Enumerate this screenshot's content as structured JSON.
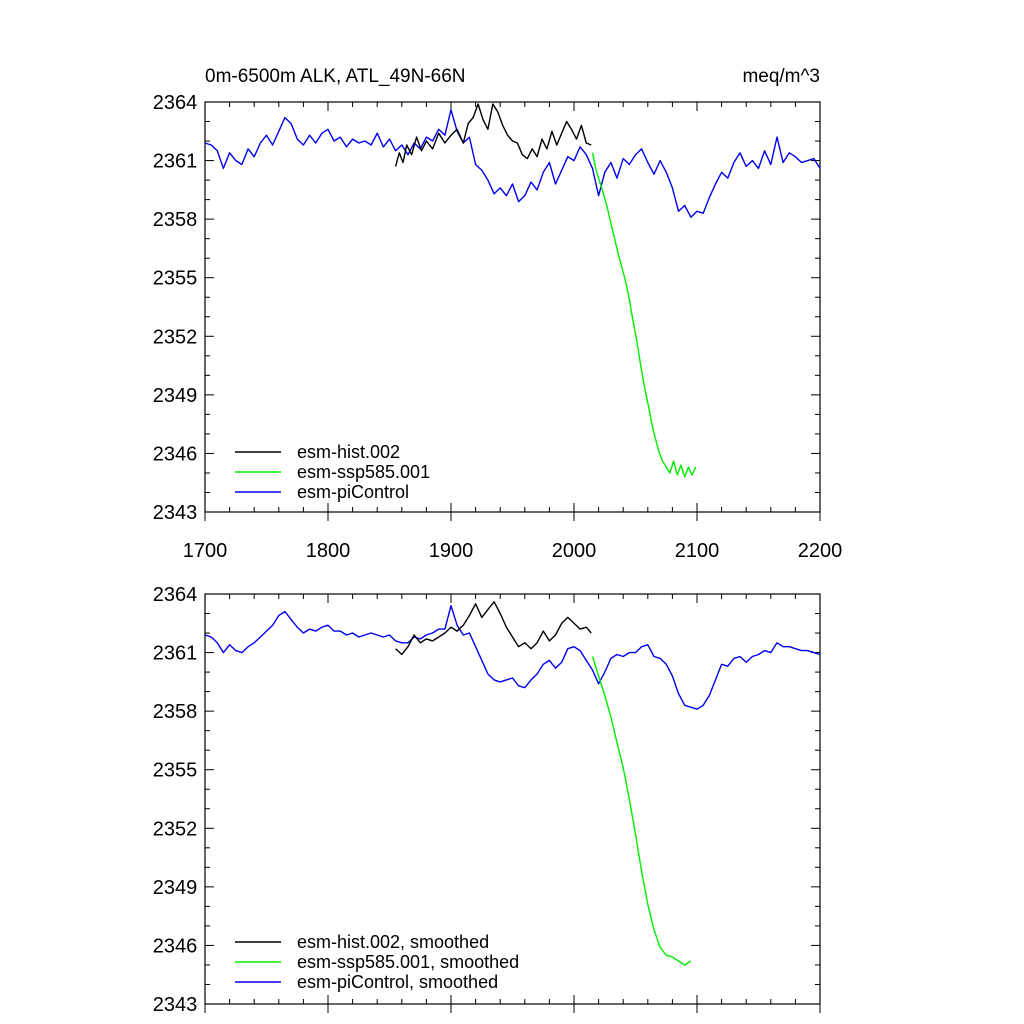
{
  "chart_data": [
    {
      "type": "line",
      "title": "0m-6500m ALK, ATL_49N-66N",
      "units": "meq/m^3",
      "xlim": [
        1700,
        2200
      ],
      "ylim": [
        2343,
        2364
      ],
      "x_ticks": [
        "1700",
        "1800",
        "1900",
        "2000",
        "2100",
        "2200"
      ],
      "y_ticks": [
        "2343",
        "2346",
        "2349",
        "2352",
        "2355",
        "2358",
        "2361",
        "2364"
      ],
      "legend_position": "bottom-left",
      "series": [
        {
          "name": "esm-hist.002",
          "color": "#000000",
          "x": [
            1855,
            1858,
            1861,
            1864,
            1868,
            1872,
            1876,
            1880,
            1885,
            1890,
            1895,
            1900,
            1905,
            1910,
            1914,
            1918,
            1922,
            1926,
            1930,
            1934,
            1938,
            1942,
            1946,
            1950,
            1954,
            1958,
            1962,
            1966,
            1970,
            1974,
            1978,
            1982,
            1986,
            1990,
            1994,
            1998,
            2002,
            2006,
            2010,
            2014
          ],
          "y": [
            2360.7,
            2361.4,
            2360.9,
            2361.8,
            2361.3,
            2362.2,
            2361.5,
            2362.0,
            2361.6,
            2362.4,
            2361.9,
            2362.3,
            2362.6,
            2361.9,
            2362.9,
            2363.2,
            2363.9,
            2363.1,
            2362.6,
            2363.9,
            2363.5,
            2362.8,
            2362.3,
            2362.0,
            2361.9,
            2361.3,
            2361.1,
            2361.6,
            2361.2,
            2362.1,
            2361.6,
            2362.5,
            2361.8,
            2362.4,
            2363.0,
            2362.6,
            2362.1,
            2362.8,
            2361.9,
            2361.8
          ]
        },
        {
          "name": "esm-ssp585.001",
          "color": "#00ee00",
          "x": [
            2015,
            2018,
            2021,
            2024,
            2027,
            2030,
            2033,
            2036,
            2039,
            2042,
            2045,
            2048,
            2051,
            2054,
            2057,
            2060,
            2063,
            2066,
            2069,
            2072,
            2075,
            2078,
            2081,
            2084,
            2087,
            2090,
            2093,
            2096,
            2099
          ],
          "y": [
            2361.4,
            2360.5,
            2359.9,
            2359.3,
            2358.6,
            2357.8,
            2357.0,
            2356.2,
            2355.5,
            2354.8,
            2353.9,
            2352.8,
            2351.8,
            2350.6,
            2349.5,
            2348.6,
            2347.6,
            2346.8,
            2346.1,
            2345.6,
            2345.3,
            2345.0,
            2345.6,
            2344.9,
            2345.4,
            2344.8,
            2345.3,
            2344.9,
            2345.3
          ]
        },
        {
          "name": "esm-piControl",
          "color": "#0000ee",
          "x": [
            1700,
            1705,
            1710,
            1715,
            1720,
            1725,
            1730,
            1735,
            1740,
            1745,
            1750,
            1755,
            1760,
            1765,
            1770,
            1775,
            1780,
            1785,
            1790,
            1795,
            1800,
            1805,
            1810,
            1815,
            1820,
            1825,
            1830,
            1835,
            1840,
            1845,
            1850,
            1855,
            1860,
            1865,
            1870,
            1875,
            1880,
            1885,
            1890,
            1895,
            1900,
            1905,
            1910,
            1915,
            1920,
            1925,
            1930,
            1935,
            1940,
            1945,
            1950,
            1955,
            1960,
            1965,
            1970,
            1975,
            1980,
            1985,
            1990,
            1995,
            2000,
            2005,
            2010,
            2015,
            2020,
            2025,
            2030,
            2035,
            2040,
            2045,
            2050,
            2055,
            2060,
            2065,
            2070,
            2075,
            2080,
            2085,
            2090,
            2095,
            2100,
            2105,
            2110,
            2115,
            2120,
            2125,
            2130,
            2135,
            2140,
            2145,
            2150,
            2155,
            2160,
            2165,
            2170,
            2175,
            2180,
            2185,
            2190,
            2195,
            2200
          ],
          "y": [
            2361.9,
            2361.8,
            2361.5,
            2360.6,
            2361.4,
            2361.0,
            2360.8,
            2361.6,
            2361.2,
            2361.9,
            2362.3,
            2361.8,
            2362.5,
            2363.2,
            2362.9,
            2362.1,
            2361.8,
            2362.3,
            2361.9,
            2362.4,
            2362.6,
            2362.0,
            2362.2,
            2361.7,
            2362.1,
            2361.9,
            2362.0,
            2361.8,
            2362.4,
            2361.7,
            2362.1,
            2361.5,
            2361.8,
            2361.3,
            2361.9,
            2361.6,
            2362.2,
            2362.0,
            2362.6,
            2362.3,
            2363.6,
            2362.5,
            2361.9,
            2362.2,
            2360.8,
            2360.5,
            2360.0,
            2359.3,
            2359.6,
            2359.2,
            2359.8,
            2358.9,
            2359.2,
            2359.9,
            2359.5,
            2360.4,
            2360.9,
            2359.8,
            2360.5,
            2361.2,
            2361.0,
            2361.7,
            2361.3,
            2360.6,
            2359.2,
            2360.4,
            2360.9,
            2360.1,
            2361.1,
            2360.8,
            2361.3,
            2361.6,
            2360.9,
            2360.3,
            2361.0,
            2360.4,
            2359.6,
            2358.4,
            2358.7,
            2358.1,
            2358.4,
            2358.3,
            2359.1,
            2359.8,
            2360.4,
            2360.1,
            2360.9,
            2361.4,
            2360.7,
            2361.0,
            2360.6,
            2361.5,
            2360.8,
            2362.2,
            2360.9,
            2361.4,
            2361.2,
            2360.9,
            2361.0,
            2361.1,
            2360.6
          ]
        }
      ]
    },
    {
      "type": "line",
      "xlim": [
        1700,
        2200
      ],
      "ylim": [
        2343,
        2364
      ],
      "y_ticks": [
        "2343",
        "2346",
        "2349",
        "2352",
        "2355",
        "2358",
        "2361",
        "2364"
      ],
      "legend_position": "bottom-left",
      "series": [
        {
          "name": "esm-hist.002, smoothed",
          "color": "#000000",
          "x": [
            1855,
            1860,
            1865,
            1870,
            1875,
            1880,
            1885,
            1890,
            1895,
            1900,
            1905,
            1910,
            1915,
            1920,
            1925,
            1930,
            1935,
            1940,
            1945,
            1950,
            1955,
            1960,
            1965,
            1970,
            1975,
            1980,
            1985,
            1990,
            1995,
            2000,
            2005,
            2010,
            2014
          ],
          "y": [
            2361.2,
            2360.9,
            2361.3,
            2361.9,
            2361.5,
            2361.7,
            2361.6,
            2361.8,
            2362.0,
            2362.3,
            2362.1,
            2362.4,
            2362.9,
            2363.5,
            2362.8,
            2363.2,
            2363.6,
            2363.0,
            2362.3,
            2361.8,
            2361.3,
            2361.5,
            2361.2,
            2361.5,
            2362.1,
            2361.6,
            2361.9,
            2362.5,
            2362.8,
            2362.5,
            2362.2,
            2362.3,
            2362.0
          ]
        },
        {
          "name": "esm-ssp585.001, smoothed",
          "color": "#00ee00",
          "x": [
            2015,
            2020,
            2025,
            2030,
            2035,
            2040,
            2045,
            2050,
            2055,
            2060,
            2065,
            2070,
            2075,
            2080,
            2085,
            2090,
            2095
          ],
          "y": [
            2360.8,
            2359.8,
            2358.8,
            2357.7,
            2356.4,
            2355.1,
            2353.5,
            2351.7,
            2349.8,
            2348.1,
            2346.8,
            2345.9,
            2345.5,
            2345.4,
            2345.2,
            2345.0,
            2345.2
          ]
        },
        {
          "name": "esm-piControl, smoothed",
          "color": "#0000ee",
          "x": [
            1700,
            1705,
            1710,
            1715,
            1720,
            1725,
            1730,
            1735,
            1740,
            1745,
            1750,
            1755,
            1760,
            1765,
            1770,
            1775,
            1780,
            1785,
            1790,
            1795,
            1800,
            1805,
            1810,
            1815,
            1820,
            1825,
            1830,
            1835,
            1840,
            1845,
            1850,
            1855,
            1860,
            1865,
            1870,
            1875,
            1880,
            1885,
            1890,
            1895,
            1900,
            1905,
            1910,
            1915,
            1920,
            1925,
            1930,
            1935,
            1940,
            1945,
            1950,
            1955,
            1960,
            1965,
            1970,
            1975,
            1980,
            1985,
            1990,
            1995,
            2000,
            2005,
            2010,
            2015,
            2020,
            2025,
            2030,
            2035,
            2040,
            2045,
            2050,
            2055,
            2060,
            2065,
            2070,
            2075,
            2080,
            2085,
            2090,
            2095,
            2100,
            2105,
            2110,
            2115,
            2120,
            2125,
            2130,
            2135,
            2140,
            2145,
            2150,
            2155,
            2160,
            2165,
            2170,
            2175,
            2180,
            2185,
            2190,
            2195,
            2200
          ],
          "y": [
            2361.9,
            2361.8,
            2361.5,
            2361.0,
            2361.4,
            2361.1,
            2361.0,
            2361.3,
            2361.5,
            2361.8,
            2362.1,
            2362.4,
            2362.9,
            2363.1,
            2362.7,
            2362.3,
            2362.0,
            2362.2,
            2362.1,
            2362.3,
            2362.4,
            2362.1,
            2362.1,
            2361.9,
            2362.0,
            2361.8,
            2361.9,
            2362.0,
            2361.9,
            2361.8,
            2361.9,
            2361.6,
            2361.5,
            2361.5,
            2361.8,
            2361.7,
            2361.9,
            2362.0,
            2362.2,
            2362.2,
            2363.4,
            2362.4,
            2361.9,
            2362.0,
            2361.3,
            2360.6,
            2359.9,
            2359.6,
            2359.5,
            2359.6,
            2359.7,
            2359.3,
            2359.2,
            2359.6,
            2359.9,
            2360.4,
            2360.6,
            2360.2,
            2360.5,
            2361.2,
            2361.3,
            2361.1,
            2360.6,
            2360.1,
            2359.4,
            2360.0,
            2360.7,
            2360.9,
            2360.8,
            2361.0,
            2361.0,
            2361.3,
            2361.4,
            2360.8,
            2360.7,
            2360.4,
            2359.8,
            2358.9,
            2358.3,
            2358.2,
            2358.1,
            2358.3,
            2358.8,
            2359.6,
            2360.4,
            2360.3,
            2360.7,
            2360.8,
            2360.5,
            2360.8,
            2360.9,
            2361.1,
            2361.0,
            2361.5,
            2361.3,
            2361.3,
            2361.2,
            2361.1,
            2361.1,
            2361.0,
            2360.9
          ]
        }
      ]
    }
  ]
}
